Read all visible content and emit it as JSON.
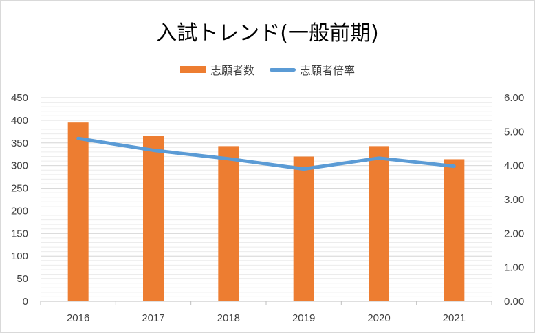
{
  "chart_data": {
    "type": "bar",
    "title": "入試トレンド(一般前期)",
    "categories": [
      "2016",
      "2017",
      "2018",
      "2019",
      "2020",
      "2021"
    ],
    "series": [
      {
        "name": "志願者数",
        "type": "bar",
        "axis": "left",
        "color": "#ED7D31",
        "values": [
          395,
          365,
          343,
          320,
          343,
          314
        ]
      },
      {
        "name": "志願者倍率",
        "type": "line",
        "axis": "right",
        "color": "#5B9BD5",
        "values": [
          4.8,
          4.45,
          4.2,
          3.9,
          4.22,
          3.98
        ]
      }
    ],
    "y_left": {
      "lim": [
        0,
        450
      ],
      "ticks": [
        "0",
        "50",
        "100",
        "150",
        "200",
        "250",
        "300",
        "350",
        "400",
        "450"
      ]
    },
    "y_right": {
      "lim": [
        0,
        6
      ],
      "ticks": [
        "0.00",
        "1.00",
        "2.00",
        "3.00",
        "4.00",
        "5.00",
        "6.00"
      ]
    },
    "grid": true,
    "legend_position": "top"
  }
}
